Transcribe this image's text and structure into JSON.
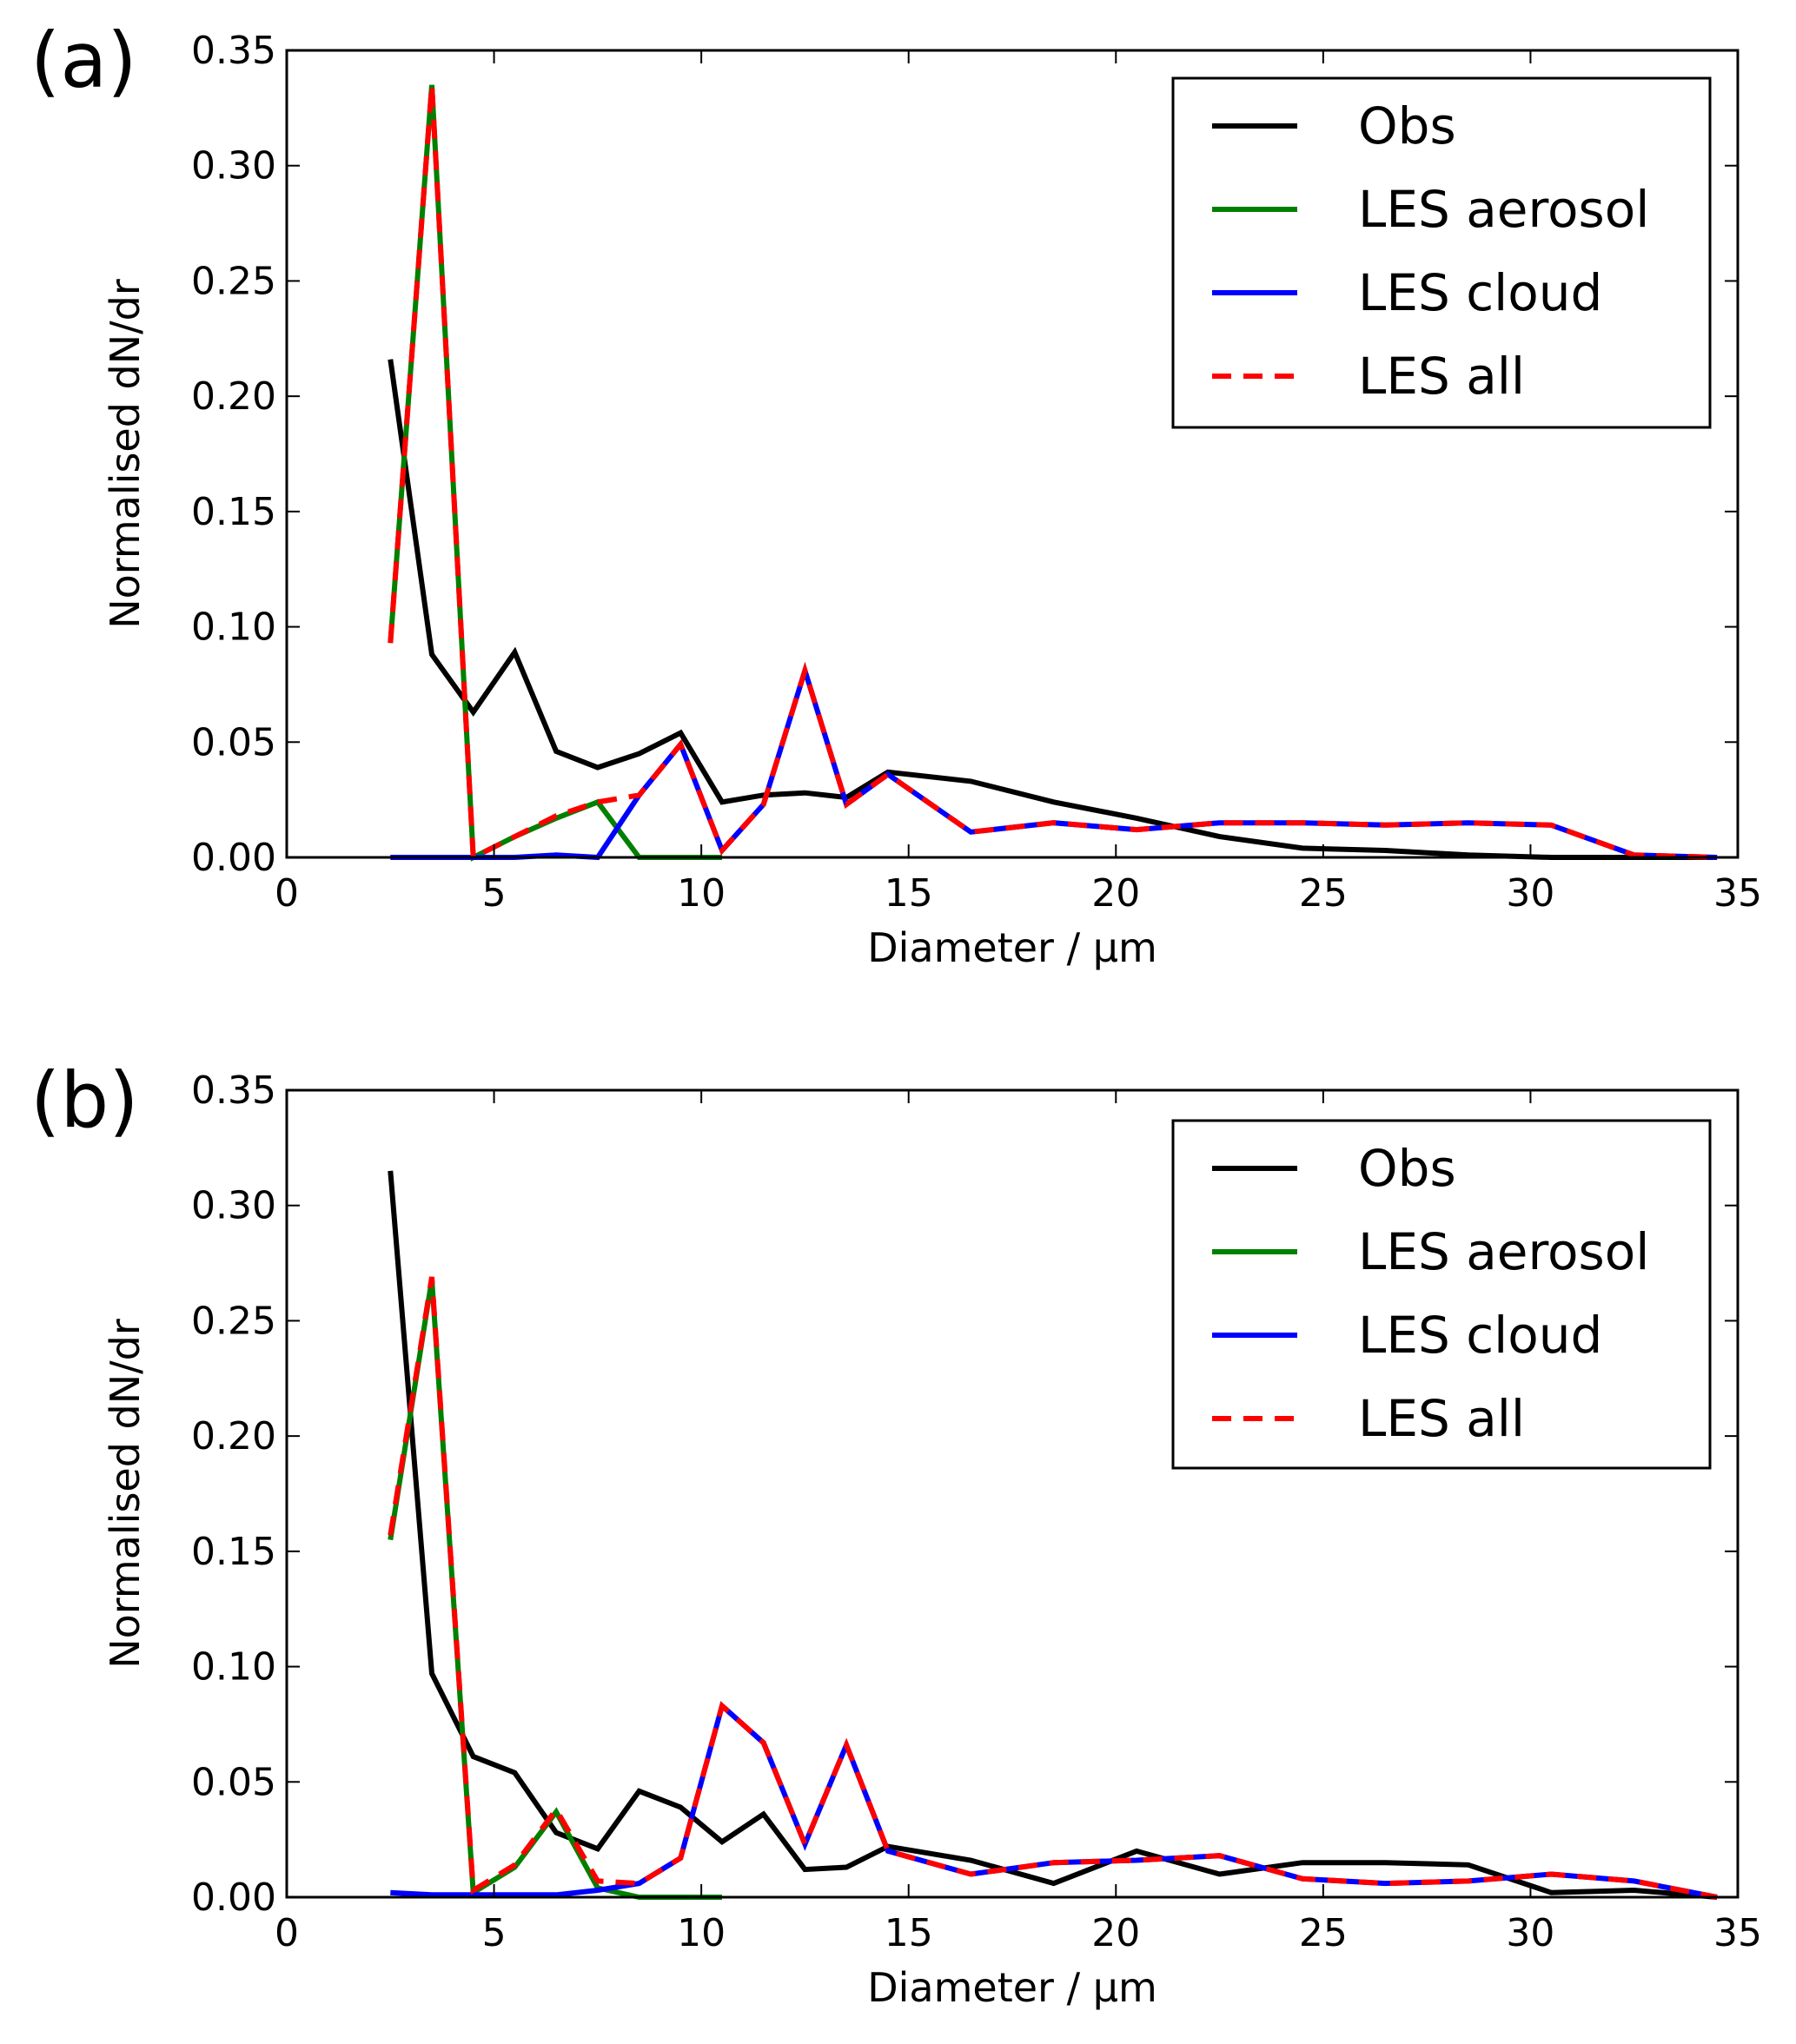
{
  "chart_data": [
    {
      "type": "line",
      "panel_label": "(a)",
      "xlabel": "Diameter / μm",
      "ylabel": "Normalised dN/dr",
      "xlim": [
        0,
        35
      ],
      "ylim": [
        0,
        0.35
      ],
      "xticks": [
        "0",
        "5",
        "10",
        "15",
        "20",
        "25",
        "30",
        "35"
      ],
      "yticks": [
        "0.00",
        "0.05",
        "0.10",
        "0.15",
        "0.20",
        "0.25",
        "0.30",
        "0.35"
      ],
      "legend_position": "top-right",
      "series": [
        {
          "name": "Obs",
          "color": "#000000",
          "dash": false,
          "x": [
            2.5,
            3.5,
            4.5,
            5.5,
            6.5,
            7.5,
            8.5,
            9.5,
            10.5,
            11.5,
            12.5,
            13.5,
            14.5,
            16.5,
            18.5,
            20.5,
            22.5,
            24.5,
            26.5,
            28.5,
            30.5,
            32.5,
            34.5
          ],
          "y": [
            0.216,
            0.088,
            0.063,
            0.089,
            0.046,
            0.039,
            0.045,
            0.054,
            0.024,
            0.027,
            0.028,
            0.026,
            0.037,
            0.033,
            0.024,
            0.017,
            0.009,
            0.004,
            0.003,
            0.001,
            0.0,
            0.0,
            0.0
          ]
        },
        {
          "name": "LES aerosol",
          "color": "#008000",
          "dash": false,
          "x": [
            2.5,
            3.5,
            4.5,
            5.5,
            6.5,
            7.5,
            8.5,
            9.5,
            10.5
          ],
          "y": [
            0.093,
            0.335,
            0.0,
            0.009,
            0.017,
            0.024,
            0.0,
            0.0,
            0.0
          ]
        },
        {
          "name": "LES cloud",
          "color": "#0000ff",
          "dash": false,
          "x": [
            2.5,
            3.5,
            4.5,
            5.5,
            6.5,
            7.5,
            8.5,
            9.5,
            10.5,
            11.5,
            12.5,
            13.5,
            14.5,
            16.5,
            18.5,
            20.5,
            22.5,
            24.5,
            26.5,
            28.5,
            30.5,
            32.5,
            34.5
          ],
          "y": [
            0.0,
            0.0,
            0.0,
            0.0,
            0.001,
            0.0,
            0.027,
            0.049,
            0.003,
            0.023,
            0.081,
            0.023,
            0.036,
            0.011,
            0.015,
            0.012,
            0.015,
            0.015,
            0.014,
            0.015,
            0.014,
            0.001,
            0.0
          ]
        },
        {
          "name": "LES all",
          "color": "#ff0000",
          "dash": true,
          "x": [
            2.5,
            3.5,
            4.5,
            5.5,
            6.5,
            7.5,
            8.5,
            9.5,
            10.5,
            11.5,
            12.5,
            13.5,
            14.5,
            16.5,
            18.5,
            20.5,
            22.5,
            24.5,
            26.5,
            28.5,
            30.5,
            32.5,
            34.5
          ],
          "y": [
            0.093,
            0.335,
            0.0,
            0.009,
            0.018,
            0.024,
            0.027,
            0.049,
            0.003,
            0.023,
            0.081,
            0.023,
            0.036,
            0.011,
            0.015,
            0.012,
            0.015,
            0.015,
            0.014,
            0.015,
            0.014,
            0.001,
            0.0
          ]
        }
      ]
    },
    {
      "type": "line",
      "panel_label": "(b)",
      "xlabel": "Diameter / μm",
      "ylabel": "Normalised dN/dr",
      "xlim": [
        0,
        35
      ],
      "ylim": [
        0,
        0.35
      ],
      "xticks": [
        "0",
        "5",
        "10",
        "15",
        "20",
        "25",
        "30",
        "35"
      ],
      "yticks": [
        "0.00",
        "0.05",
        "0.10",
        "0.15",
        "0.20",
        "0.25",
        "0.30",
        "0.35"
      ],
      "legend_position": "top-right",
      "series": [
        {
          "name": "Obs",
          "color": "#000000",
          "dash": false,
          "x": [
            2.5,
            3.5,
            4.5,
            5.5,
            6.5,
            7.5,
            8.5,
            9.5,
            10.5,
            11.5,
            12.5,
            13.5,
            14.5,
            16.5,
            18.5,
            20.5,
            22.5,
            24.5,
            26.5,
            28.5,
            30.5,
            32.5,
            34.5
          ],
          "y": [
            0.315,
            0.097,
            0.061,
            0.054,
            0.028,
            0.021,
            0.046,
            0.039,
            0.024,
            0.036,
            0.012,
            0.013,
            0.022,
            0.016,
            0.006,
            0.02,
            0.01,
            0.015,
            0.015,
            0.014,
            0.002,
            0.003,
            0.0
          ]
        },
        {
          "name": "LES aerosol",
          "color": "#008000",
          "dash": false,
          "x": [
            2.5,
            3.5,
            4.5,
            5.5,
            6.5,
            7.5,
            8.5,
            9.5,
            10.5
          ],
          "y": [
            0.155,
            0.268,
            0.002,
            0.013,
            0.037,
            0.004,
            0.0,
            0.0,
            0.0
          ]
        },
        {
          "name": "LES cloud",
          "color": "#0000ff",
          "dash": false,
          "x": [
            2.5,
            3.5,
            4.5,
            5.5,
            6.5,
            7.5,
            8.5,
            9.5,
            10.5,
            11.5,
            12.5,
            13.5,
            14.5,
            16.5,
            18.5,
            20.5,
            22.5,
            24.5,
            26.5,
            28.5,
            30.5,
            32.5,
            34.5
          ],
          "y": [
            0.002,
            0.001,
            0.001,
            0.001,
            0.001,
            0.003,
            0.006,
            0.017,
            0.083,
            0.067,
            0.023,
            0.066,
            0.02,
            0.01,
            0.015,
            0.016,
            0.018,
            0.008,
            0.006,
            0.007,
            0.01,
            0.007,
            0.0
          ]
        },
        {
          "name": "LES all",
          "color": "#ff0000",
          "dash": true,
          "x": [
            2.5,
            3.5,
            4.5,
            5.5,
            6.5,
            7.5,
            8.5,
            9.5,
            10.5,
            11.5,
            12.5,
            13.5,
            14.5,
            16.5,
            18.5,
            20.5,
            22.5,
            24.5,
            26.5,
            28.5,
            30.5,
            32.5,
            34.5
          ],
          "y": [
            0.157,
            0.269,
            0.003,
            0.014,
            0.038,
            0.007,
            0.006,
            0.017,
            0.083,
            0.067,
            0.023,
            0.066,
            0.02,
            0.01,
            0.015,
            0.016,
            0.018,
            0.008,
            0.006,
            0.007,
            0.01,
            0.007,
            0.0
          ]
        }
      ]
    }
  ]
}
